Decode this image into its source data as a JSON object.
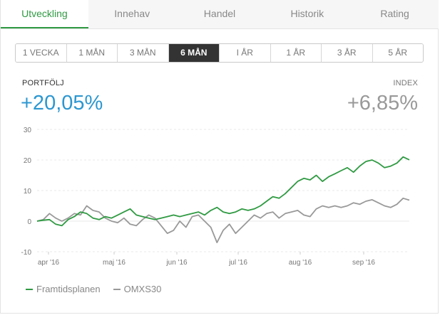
{
  "tabs": [
    {
      "label": "Utveckling",
      "active": true
    },
    {
      "label": "Innehav",
      "active": false
    },
    {
      "label": "Handel",
      "active": false
    },
    {
      "label": "Historik",
      "active": false
    },
    {
      "label": "Rating",
      "active": false
    }
  ],
  "ranges": [
    {
      "label": "1 VECKA",
      "active": false
    },
    {
      "label": "1 MÅN",
      "active": false
    },
    {
      "label": "3 MÅN",
      "active": false
    },
    {
      "label": "6 MÅN",
      "active": true
    },
    {
      "label": "I ÅR",
      "active": false
    },
    {
      "label": "1 ÅR",
      "active": false
    },
    {
      "label": "3 ÅR",
      "active": false
    },
    {
      "label": "5 ÅR",
      "active": false
    }
  ],
  "portfolio": {
    "label": "PORTFÖLJ",
    "value": "+20,05%"
  },
  "index": {
    "label": "INDEX",
    "value": "+6,85%"
  },
  "colors": {
    "accent": "#2f9a42",
    "portfolio": "#2c97d0",
    "index_line": "#999999",
    "portfolio_line": "#2f9a42"
  },
  "chart_data": {
    "type": "line",
    "ylim": [
      -10,
      30
    ],
    "yticks": [
      "30",
      "20",
      "10",
      "0",
      "-10"
    ],
    "xlabels": [
      "apr '16",
      "maj '16",
      "jun '16",
      "jul '16",
      "aug '16",
      "sep '16"
    ],
    "series": [
      {
        "name": "Framtidsplanen",
        "color": "#2f9a42",
        "values": [
          0,
          0.3,
          0.5,
          -1,
          -1.5,
          0.5,
          1.5,
          3,
          2.5,
          1,
          0.5,
          1.5,
          1,
          2,
          3,
          4,
          2,
          1.5,
          1,
          0.5,
          1,
          1.5,
          2,
          1.5,
          2,
          2.5,
          3,
          2,
          3.5,
          4.5,
          3,
          2.5,
          3,
          4,
          3.5,
          4,
          5,
          6.5,
          8,
          7.5,
          9,
          11,
          13,
          14,
          13.5,
          15,
          13,
          14.5,
          15.5,
          16.5,
          17.5,
          16,
          18,
          19.5,
          20,
          19,
          17.5,
          18,
          19,
          21,
          20.05
        ]
      },
      {
        "name": "OMXS30",
        "color": "#999999",
        "values": [
          0,
          0.5,
          2.5,
          1,
          0,
          1,
          2.5,
          2,
          5,
          3.5,
          3,
          1,
          0,
          -0.5,
          1,
          -1,
          -1.5,
          0.5,
          2,
          1,
          -1.5,
          -4,
          -3,
          0,
          -2,
          1.5,
          2,
          0,
          -2,
          -7,
          -3,
          -1,
          -4,
          -2,
          0,
          2,
          1,
          2.5,
          3,
          1,
          2.5,
          3,
          3.5,
          2,
          1.5,
          4,
          5,
          4.5,
          5,
          4.5,
          5,
          6,
          5.5,
          6.5,
          7,
          6,
          5,
          4.5,
          5.5,
          7.5,
          6.85
        ]
      }
    ]
  }
}
